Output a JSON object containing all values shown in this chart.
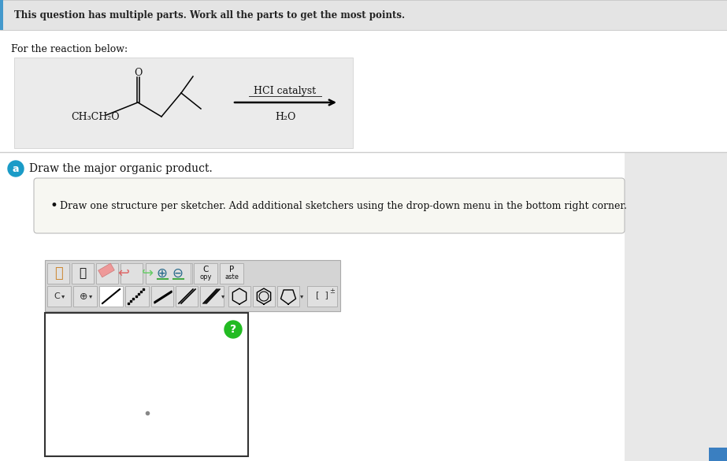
{
  "title_text": "This question has multiple parts. Work all the parts to get the most points.",
  "for_reaction_text": "For the reaction below:",
  "reaction_box_color": "#ebebeb",
  "hci_text": "HCI catalyst",
  "h2o_text": "H₂O",
  "ch3ch2o_text": "CH₃CH₂O",
  "part_a_label": "a",
  "part_a_color": "#1a9bc7",
  "part_a_text": "Draw the major organic product.",
  "instruction_box_color": "#f7f7f2",
  "instruction_text": "Draw one structure per sketcher. Add additional sketchers using the drop-down menu in the bottom right corner.",
  "sketcher_border": "#333333",
  "sketcher_bg": "#ffffff",
  "bg_color": "#ffffff",
  "top_bar_color": "#e4e4e4",
  "toolbar_bg": "#d4d4d4",
  "btn_bg": "#e0e0e0",
  "question_mark_color": "#22bb22",
  "right_panel_color": "#e8e8e8",
  "bottom_right_blue": "#3a7fc1",
  "separator_color": "#cccccc"
}
